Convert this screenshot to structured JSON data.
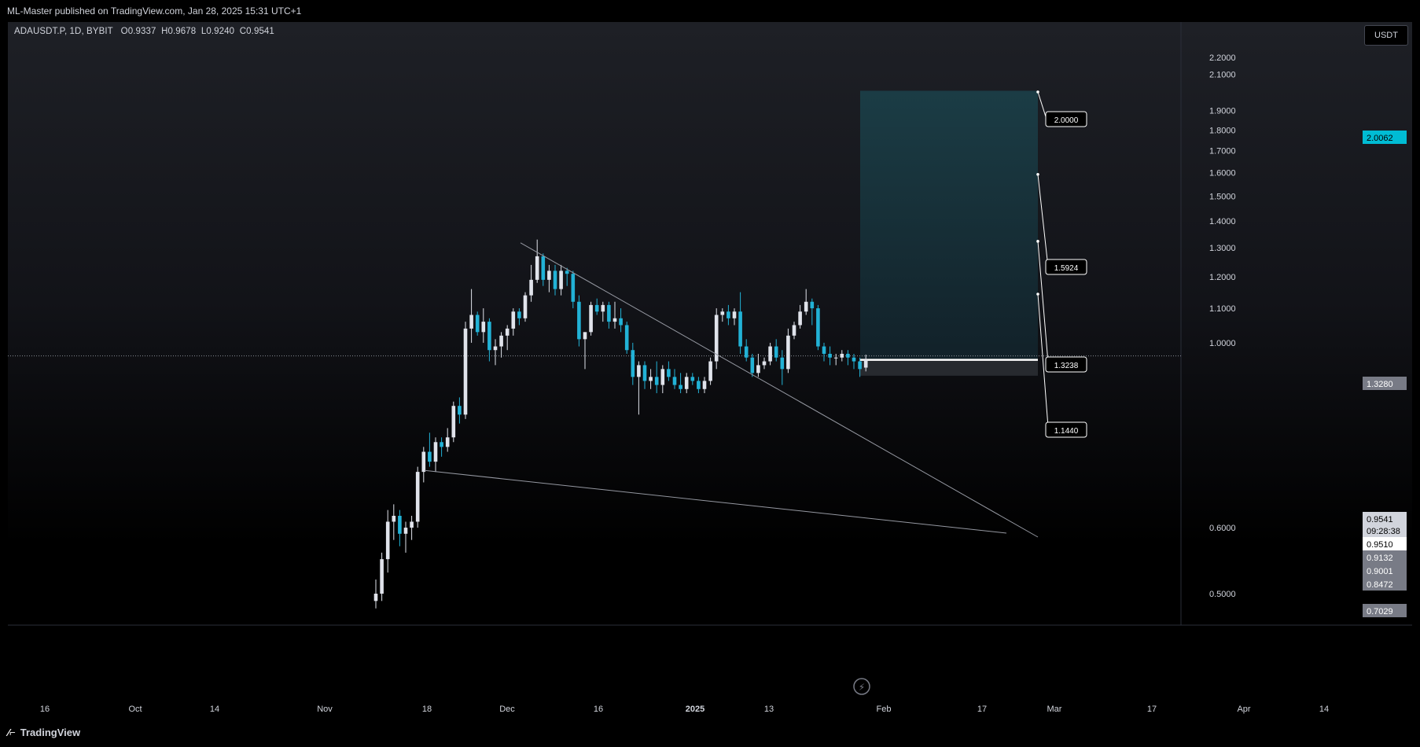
{
  "header": {
    "published_text": "ML-Master published on TradingView.com, Jan 28, 2025 15:31 UTC+1"
  },
  "legend": {
    "symbol": "ADAUSDT.P, 1D, BYBIT",
    "open": "O0.9337",
    "high": "H0.9678",
    "low": "L0.9240",
    "close": "C0.9541"
  },
  "currency_label": "USDT",
  "brand": {
    "name": "TradingView"
  },
  "colors": {
    "up": "#e0e3eb",
    "down": "#22b2d6",
    "target_zone": "#1b3e47",
    "stop_zone": "#2a2d33",
    "accent": "#00bcd4"
  },
  "chart_data": {
    "type": "candlestick",
    "y_axis": {
      "scale": "log",
      "range": [
        0.48,
        2.3
      ],
      "ticks": [
        "2.2000",
        "2.1000",
        "1.9000",
        "1.8000",
        "1.7000",
        "1.6000",
        "1.5000",
        "1.4000",
        "1.3000",
        "1.2000",
        "1.1000",
        "1.0000",
        "0.6000",
        "0.5000"
      ]
    },
    "x_axis": {
      "ticks": [
        "16",
        "Oct",
        "14",
        "Nov",
        "18",
        "Dec",
        "16",
        "2025",
        "13",
        "Feb",
        "17",
        "Mar",
        "17",
        "Apr",
        "14"
      ]
    },
    "price_labels": [
      {
        "value": "2.0062",
        "style": "accent"
      },
      {
        "value": "1.3280",
        "style": "grey"
      },
      {
        "value": "0.9541",
        "style": "current"
      },
      {
        "value": "09:28:38",
        "style": "current"
      },
      {
        "value": "0.9510",
        "style": "white"
      },
      {
        "value": "0.9132",
        "style": "grey"
      },
      {
        "value": "0.9001",
        "style": "grey"
      },
      {
        "value": "0.8472",
        "style": "grey"
      },
      {
        "value": "0.7029",
        "style": "grey"
      }
    ],
    "targets": [
      "2.0000",
      "1.5924",
      "1.3238",
      "1.1440"
    ],
    "position": {
      "entry": 0.9541,
      "stop": 0.913,
      "target": 2.0062
    },
    "triangle": {
      "upper_start": 1.3238,
      "lower_start": 0.7029
    },
    "candles": [
      [
        0.49,
        0.52,
        0.48,
        0.5
      ],
      [
        0.5,
        0.56,
        0.49,
        0.55
      ],
      [
        0.55,
        0.63,
        0.53,
        0.61
      ],
      [
        0.61,
        0.64,
        0.58,
        0.62
      ],
      [
        0.62,
        0.63,
        0.57,
        0.59
      ],
      [
        0.59,
        0.61,
        0.56,
        0.6
      ],
      [
        0.6,
        0.62,
        0.58,
        0.61
      ],
      [
        0.61,
        0.71,
        0.6,
        0.7
      ],
      [
        0.7,
        0.75,
        0.68,
        0.74
      ],
      [
        0.74,
        0.78,
        0.71,
        0.72
      ],
      [
        0.72,
        0.77,
        0.7,
        0.76
      ],
      [
        0.76,
        0.77,
        0.73,
        0.75
      ],
      [
        0.75,
        0.79,
        0.74,
        0.77
      ],
      [
        0.77,
        0.85,
        0.76,
        0.84
      ],
      [
        0.84,
        0.86,
        0.8,
        0.82
      ],
      [
        0.82,
        1.06,
        0.81,
        1.04
      ],
      [
        1.04,
        1.16,
        1.0,
        1.08
      ],
      [
        1.08,
        1.09,
        1.02,
        1.03
      ],
      [
        1.03,
        1.1,
        1.0,
        1.06
      ],
      [
        1.06,
        1.07,
        0.95,
        0.98
      ],
      [
        0.98,
        1.01,
        0.94,
        0.99
      ],
      [
        0.99,
        1.03,
        0.96,
        1.02
      ],
      [
        1.02,
        1.05,
        0.98,
        1.04
      ],
      [
        1.04,
        1.1,
        1.02,
        1.09
      ],
      [
        1.09,
        1.1,
        1.05,
        1.07
      ],
      [
        1.07,
        1.15,
        1.06,
        1.14
      ],
      [
        1.14,
        1.24,
        1.12,
        1.19
      ],
      [
        1.19,
        1.33,
        1.18,
        1.27
      ],
      [
        1.27,
        1.28,
        1.17,
        1.19
      ],
      [
        1.19,
        1.24,
        1.15,
        1.22
      ],
      [
        1.22,
        1.24,
        1.14,
        1.16
      ],
      [
        1.16,
        1.24,
        1.14,
        1.22
      ],
      [
        1.22,
        1.23,
        1.17,
        1.21
      ],
      [
        1.21,
        1.22,
        1.1,
        1.12
      ],
      [
        1.12,
        1.14,
        0.99,
        1.01
      ],
      [
        1.01,
        1.03,
        0.93,
        1.03
      ],
      [
        1.03,
        1.12,
        1.02,
        1.11
      ],
      [
        1.11,
        1.13,
        1.08,
        1.09
      ],
      [
        1.09,
        1.12,
        1.06,
        1.11
      ],
      [
        1.11,
        1.12,
        1.04,
        1.06
      ],
      [
        1.06,
        1.12,
        1.04,
        1.07
      ],
      [
        1.07,
        1.1,
        1.03,
        1.05
      ],
      [
        1.05,
        1.06,
        0.97,
        0.98
      ],
      [
        0.98,
        1.0,
        0.89,
        0.91
      ],
      [
        0.91,
        0.95,
        0.82,
        0.94
      ],
      [
        0.94,
        0.95,
        0.88,
        0.9
      ],
      [
        0.9,
        0.93,
        0.88,
        0.91
      ],
      [
        0.91,
        0.95,
        0.87,
        0.89
      ],
      [
        0.89,
        0.94,
        0.87,
        0.93
      ],
      [
        0.93,
        0.95,
        0.9,
        0.91
      ],
      [
        0.91,
        0.93,
        0.88,
        0.89
      ],
      [
        0.89,
        0.92,
        0.87,
        0.88
      ],
      [
        0.88,
        0.92,
        0.87,
        0.91
      ],
      [
        0.91,
        0.92,
        0.89,
        0.9
      ],
      [
        0.9,
        0.91,
        0.87,
        0.88
      ],
      [
        0.88,
        0.91,
        0.87,
        0.9
      ],
      [
        0.9,
        0.96,
        0.89,
        0.95
      ],
      [
        0.95,
        1.1,
        0.93,
        1.08
      ],
      [
        1.08,
        1.1,
        1.06,
        1.09
      ],
      [
        1.09,
        1.11,
        1.05,
        1.07
      ],
      [
        1.07,
        1.1,
        1.05,
        1.09
      ],
      [
        1.09,
        1.15,
        0.97,
        0.99
      ],
      [
        0.99,
        1.01,
        0.95,
        0.96
      ],
      [
        0.96,
        0.97,
        0.91,
        0.92
      ],
      [
        0.92,
        0.97,
        0.91,
        0.94
      ],
      [
        0.94,
        0.96,
        0.93,
        0.95
      ],
      [
        0.95,
        1.0,
        0.94,
        0.99
      ],
      [
        0.99,
        1.01,
        0.95,
        0.96
      ],
      [
        0.96,
        0.98,
        0.89,
        0.93
      ],
      [
        0.93,
        1.04,
        0.92,
        1.02
      ],
      [
        1.02,
        1.06,
        1.01,
        1.05
      ],
      [
        1.05,
        1.11,
        1.04,
        1.09
      ],
      [
        1.09,
        1.16,
        1.08,
        1.12
      ],
      [
        1.12,
        1.13,
        1.05,
        1.1
      ],
      [
        1.1,
        1.11,
        0.98,
        0.99
      ],
      [
        0.99,
        1.0,
        0.95,
        0.97
      ],
      [
        0.97,
        0.99,
        0.94,
        0.96
      ],
      [
        0.96,
        0.97,
        0.94,
        0.96
      ],
      [
        0.96,
        0.98,
        0.95,
        0.97
      ],
      [
        0.97,
        0.98,
        0.94,
        0.96
      ],
      [
        0.96,
        0.97,
        0.93,
        0.95
      ],
      [
        0.95,
        0.96,
        0.91,
        0.93
      ],
      [
        0.9337,
        0.9678,
        0.924,
        0.9541
      ]
    ]
  }
}
